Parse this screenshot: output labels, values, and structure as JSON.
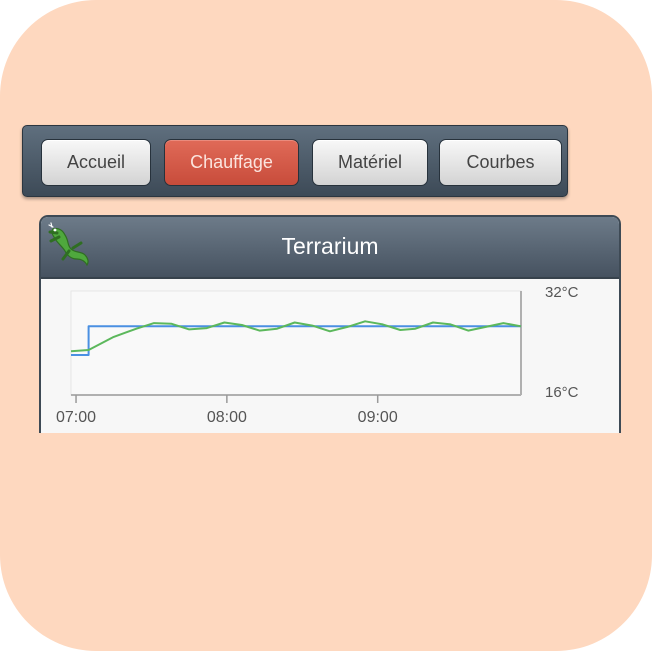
{
  "nav": {
    "buttons": [
      {
        "label": "Accueil",
        "active": false
      },
      {
        "label": "Chauffage",
        "active": true
      },
      {
        "label": "Matériel",
        "active": false
      },
      {
        "label": "Courbes",
        "active": false
      }
    ]
  },
  "panel": {
    "title": "Terrarium",
    "icon": "lizard-icon"
  },
  "colors": {
    "tile_background": "#fed8bf",
    "active_button": "#d35a48",
    "setpoint_line": "#4a90e2",
    "temperature_line": "#5cb85c"
  },
  "chart_data": {
    "type": "line",
    "title": "",
    "xlabel": "",
    "ylabel": "",
    "x_ticks": [
      "07:00",
      "08:00",
      "09:00"
    ],
    "y_ticks": [
      "32°C",
      "16°C"
    ],
    "ylim": [
      16,
      32
    ],
    "xlim": [
      "06:58",
      "09:57"
    ],
    "grid": false,
    "series": [
      {
        "color": "#4a90e2",
        "points": [
          [
            "06:58",
            22.4
          ],
          [
            "07:05",
            22.4
          ],
          [
            "07:05",
            27.0
          ],
          [
            "09:57",
            27.0
          ]
        ]
      },
      {
        "color": "#5cb85c",
        "points": [
          [
            "06:58",
            23.0
          ],
          [
            "07:05",
            23.2
          ],
          [
            "07:15",
            25.3
          ],
          [
            "07:24",
            26.6
          ],
          [
            "07:31",
            27.5
          ],
          [
            "07:38",
            27.4
          ],
          [
            "07:45",
            26.5
          ],
          [
            "07:52",
            26.7
          ],
          [
            "07:59",
            27.6
          ],
          [
            "08:06",
            27.2
          ],
          [
            "08:13",
            26.3
          ],
          [
            "08:20",
            26.6
          ],
          [
            "08:27",
            27.6
          ],
          [
            "08:34",
            27.1
          ],
          [
            "08:41",
            26.2
          ],
          [
            "08:48",
            26.9
          ],
          [
            "08:55",
            27.8
          ],
          [
            "09:02",
            27.3
          ],
          [
            "09:09",
            26.4
          ],
          [
            "09:15",
            26.6
          ],
          [
            "09:22",
            27.6
          ],
          [
            "09:29",
            27.3
          ],
          [
            "09:36",
            26.3
          ],
          [
            "09:43",
            26.9
          ],
          [
            "09:50",
            27.5
          ],
          [
            "09:57",
            27.0
          ]
        ]
      }
    ]
  }
}
